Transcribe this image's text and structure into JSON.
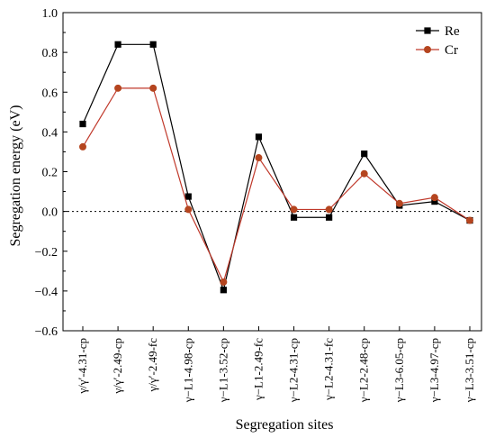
{
  "chart_data": {
    "type": "line",
    "xlabel": "Segregation sites",
    "ylabel": "Segregation energy (eV)",
    "ylim": [
      -0.6,
      1.0
    ],
    "yticks": [
      -0.6,
      -0.4,
      -0.2,
      0.0,
      0.2,
      0.4,
      0.6,
      0.8,
      1.0
    ],
    "ytick_labels": [
      "−0.6",
      "−0.4",
      "−0.2",
      "0.0",
      "0.2",
      "0.4",
      "0.6",
      "0.8",
      "1.0"
    ],
    "categories": [
      "γ/γ′-4.31-cp",
      "γ/γ′-2.49-cp",
      "γ/γ′-2.49-fc",
      "γ−L1-4.98-cp",
      "γ−L1-3.52-cp",
      "γ−L1-2.49-fc",
      "γ−L2-4.31-cp",
      "γ−L2-4.31-fc",
      "γ−L2-2.48-cp",
      "γ−L3-6.05-cp",
      "γ−L3-4.97-cp",
      "γ−L3-3.51-cp"
    ],
    "reference_line": {
      "y": 0.0,
      "style": "dotted"
    },
    "legend_position": "top-right",
    "series": [
      {
        "name": "Re",
        "color": "#000000",
        "marker": "square",
        "values": [
          0.44,
          0.84,
          0.84,
          0.075,
          -0.395,
          0.375,
          -0.03,
          -0.03,
          0.29,
          0.03,
          0.05,
          -0.045
        ]
      },
      {
        "name": "Cr",
        "color": "#c0392b",
        "marker_color": "#b5451f",
        "marker": "circle",
        "values": [
          0.325,
          0.62,
          0.62,
          0.01,
          -0.355,
          0.27,
          0.01,
          0.01,
          0.19,
          0.04,
          0.07,
          -0.045
        ]
      }
    ]
  }
}
